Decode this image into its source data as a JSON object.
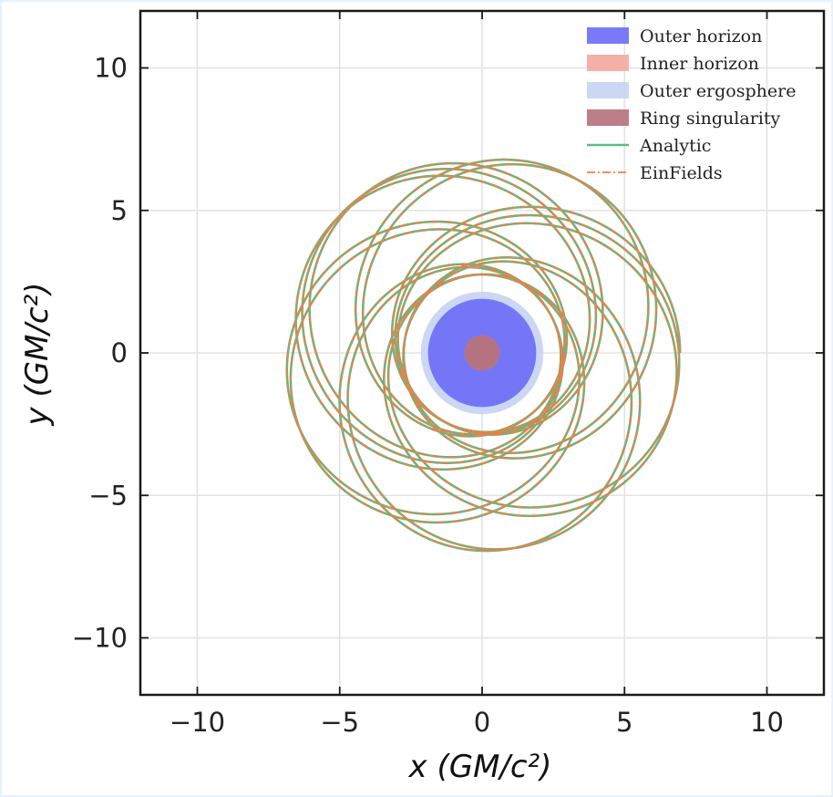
{
  "chart_data": {
    "type": "line",
    "title": "",
    "xlabel": "x (GM/c²)",
    "ylabel": "y (GM/c²)",
    "xlim": [
      -12,
      12
    ],
    "ylim": [
      -12,
      12
    ],
    "grid": true,
    "xticks": [
      -10,
      -5,
      0,
      5,
      10
    ],
    "yticks": [
      -10,
      -5,
      0,
      5,
      10
    ],
    "xtick_labels": [
      "−10",
      "−5",
      "0",
      "5",
      "10"
    ],
    "ytick_labels": [
      "−10",
      "−5",
      "0",
      "5",
      "10"
    ],
    "legend_position": "top-right",
    "regions": [
      {
        "name": "Outer ergosphere",
        "shape": "disk",
        "radius": 2.15,
        "color": "#c5d3f2"
      },
      {
        "name": "Outer horizon",
        "shape": "disk",
        "radius": 1.9,
        "color": "#6b6bf7"
      },
      {
        "name": "Inner horizon",
        "shape": "disk",
        "radius": 0.62,
        "color": "#f4a99f"
      },
      {
        "name": "Ring singularity",
        "shape": "disk",
        "radius": 0.62,
        "color": "#b5707a"
      }
    ],
    "series": [
      {
        "name": "Analytic",
        "style": "solid",
        "color": "#5dbb85",
        "orbit": {
          "r_min": 2.75,
          "r_max": 6.95,
          "precession_per_orbit_deg": 142,
          "num_orbits": 11.5,
          "periapsis_start_deg": 180
        }
      },
      {
        "name": "EinFields",
        "style": "dashdot",
        "color": "#f07e45",
        "orbit": {
          "r_min": 2.75,
          "r_max": 6.95,
          "precession_per_orbit_deg": 142,
          "num_orbits": 11.5,
          "periapsis_start_deg": 180
        }
      }
    ],
    "legend": [
      {
        "label": "Outer horizon",
        "kind": "patch",
        "color": "#6b6bf7"
      },
      {
        "label": "Inner horizon",
        "kind": "patch",
        "color": "#f4a99f"
      },
      {
        "label": "Outer ergosphere",
        "kind": "patch",
        "color": "#c5d3f2"
      },
      {
        "label": "Ring singularity",
        "kind": "patch",
        "color": "#b5707a"
      },
      {
        "label": "Analytic",
        "kind": "line",
        "color": "#5dbb85"
      },
      {
        "label": "EinFields",
        "kind": "dashline",
        "color": "#f07e45"
      }
    ]
  }
}
